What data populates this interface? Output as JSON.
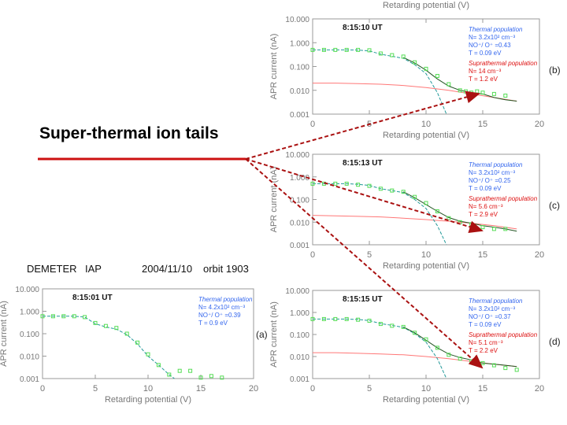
{
  "callout_text": "Super-thermal ion tails",
  "header": {
    "instrument": "DEMETER",
    "sensor": "IAP",
    "date": "2004/11/10",
    "orbit": "orbit 1903"
  },
  "colors": {
    "measured": "#55dd55",
    "thermal_fit": "#229999",
    "suprathermal_fit": "#ff7777",
    "total_fit": "#225522",
    "annotation_blue": "#3366ee",
    "annotation_red": "#dd1111",
    "callout_line": "#cc1111",
    "arrow": "#aa1111"
  },
  "chart_data": [
    {
      "id": "b",
      "type": "scatter",
      "panel_label": "(b)",
      "time": "8:15:10 UT",
      "xlabel": "Retarding potential (V)",
      "ylabel": "APR current (nA)",
      "top_axis_label": "Retarding potential (V)",
      "xlim": [
        0,
        20
      ],
      "ylim": [
        0.001,
        10
      ],
      "xticks": [
        "0",
        "5",
        "10",
        "15",
        "20"
      ],
      "yticks": [
        "0.001",
        "0.010",
        "0.100",
        "1.000",
        "10.000"
      ],
      "thermal": {
        "title": "Thermal population",
        "lines": [
          "N= 3.2x10² cm⁻³",
          "NO⁺/ O⁺ =0.43",
          "T = 0.09 eV"
        ]
      },
      "suprathermal": {
        "title": "Suprathermal population",
        "lines": [
          "N= 14 cm⁻³",
          "T = 1.2 eV"
        ]
      },
      "measured": {
        "x": [
          0,
          1,
          2,
          3,
          4,
          5,
          6,
          7,
          8,
          9,
          10,
          11,
          12,
          13,
          13.5,
          14,
          14.5,
          15,
          16,
          17
        ],
        "y": [
          0.5,
          0.5,
          0.5,
          0.5,
          0.5,
          0.48,
          0.35,
          0.3,
          0.26,
          0.15,
          0.08,
          0.04,
          0.018,
          0.01,
          0.009,
          0.008,
          0.009,
          0.008,
          0.007,
          0.006
        ]
      },
      "thermal_fit": {
        "x": [
          0,
          1,
          2,
          3,
          4,
          5,
          6,
          7,
          8,
          9,
          10,
          11,
          11.8
        ],
        "y": [
          0.5,
          0.5,
          0.5,
          0.5,
          0.49,
          0.45,
          0.33,
          0.27,
          0.22,
          0.12,
          0.05,
          0.008,
          0.001
        ]
      },
      "supra_fit": {
        "x": [
          0,
          2,
          4,
          6,
          8,
          10,
          12,
          14,
          16,
          18
        ],
        "y": [
          0.02,
          0.02,
          0.019,
          0.018,
          0.016,
          0.013,
          0.01,
          0.007,
          0.005,
          0.0035
        ]
      },
      "total_fit": {
        "x": [
          8,
          9,
          10,
          11,
          12,
          13,
          14,
          15,
          16,
          17,
          18
        ],
        "y": [
          0.24,
          0.14,
          0.07,
          0.03,
          0.015,
          0.01,
          0.008,
          0.007,
          0.005,
          0.004,
          0.0035
        ]
      }
    },
    {
      "id": "c",
      "type": "scatter",
      "panel_label": "(c)",
      "time": "8:15:13 UT",
      "xlabel": "Retarding potential (V)",
      "ylabel": "APR current (nA)",
      "xlim": [
        0,
        20
      ],
      "ylim": [
        0.001,
        10
      ],
      "xticks": [
        "0",
        "5",
        "10",
        "15",
        "20"
      ],
      "yticks": [
        "0.001",
        "0.010",
        "0.100",
        "1.000",
        "10.000"
      ],
      "thermal": {
        "title": "Thermal population",
        "lines": [
          "N= 3.2x10² cm⁻³",
          "NO⁺/ O⁺ =0.25",
          "T = 0.09 eV"
        ]
      },
      "suprathermal": {
        "title": "Suprathermal population",
        "lines": [
          "N= 5.6 cm⁻³",
          "T = 2.9 eV"
        ]
      },
      "measured": {
        "x": [
          0,
          1,
          2,
          3,
          4,
          5,
          6,
          7,
          8,
          9,
          10,
          11,
          12,
          13,
          14,
          15,
          16,
          17
        ],
        "y": [
          0.5,
          0.5,
          0.5,
          0.5,
          0.45,
          0.4,
          0.3,
          0.25,
          0.22,
          0.13,
          0.07,
          0.03,
          0.015,
          0.01,
          0.008,
          0.006,
          0.005,
          0.005
        ]
      },
      "thermal_fit": {
        "x": [
          0,
          1,
          2,
          3,
          4,
          5,
          6,
          7,
          8,
          9,
          10,
          11,
          11.8
        ],
        "y": [
          0.5,
          0.5,
          0.5,
          0.5,
          0.47,
          0.42,
          0.3,
          0.25,
          0.2,
          0.1,
          0.04,
          0.007,
          0.001
        ]
      },
      "supra_fit": {
        "x": [
          0,
          2,
          4,
          6,
          8,
          10,
          12,
          14,
          16,
          18
        ],
        "y": [
          0.02,
          0.019,
          0.018,
          0.017,
          0.015,
          0.013,
          0.011,
          0.009,
          0.007,
          0.005
        ]
      },
      "total_fit": {
        "x": [
          8,
          9,
          10,
          11,
          12,
          13,
          14,
          15,
          16,
          17,
          18
        ],
        "y": [
          0.22,
          0.12,
          0.06,
          0.03,
          0.016,
          0.011,
          0.009,
          0.007,
          0.006,
          0.005,
          0.004
        ]
      }
    },
    {
      "id": "d",
      "type": "scatter",
      "panel_label": "(d)",
      "time": "8:15:15 UT",
      "xlabel": "Retarding potential (V)",
      "ylabel": "APR current (nA)",
      "xlim": [
        0,
        20
      ],
      "ylim": [
        0.001,
        10
      ],
      "xticks": [
        "0",
        "5",
        "10",
        "15",
        "20"
      ],
      "yticks": [
        "0.001",
        "0.010",
        "0.100",
        "1.000",
        "10.000"
      ],
      "thermal": {
        "title": "Thermal population",
        "lines": [
          "N= 3.2x10² cm⁻³",
          "NO⁺/ O⁺ =0.37",
          "T = 0.09 eV"
        ]
      },
      "suprathermal": {
        "title": "Suprathermal population",
        "lines": [
          "N= 5.1 cm⁻³",
          "T = 2.2 eV"
        ]
      },
      "measured": {
        "x": [
          0,
          1,
          2,
          3,
          4,
          5,
          6,
          7,
          8,
          9,
          10,
          11,
          12,
          13,
          14,
          15,
          16,
          17,
          18
        ],
        "y": [
          0.5,
          0.5,
          0.5,
          0.5,
          0.47,
          0.42,
          0.3,
          0.25,
          0.22,
          0.12,
          0.06,
          0.025,
          0.012,
          0.008,
          0.006,
          0.005,
          0.004,
          0.003,
          0.0025
        ]
      },
      "thermal_fit": {
        "x": [
          0,
          1,
          2,
          3,
          4,
          5,
          6,
          7,
          8,
          9,
          10,
          11,
          11.8
        ],
        "y": [
          0.5,
          0.5,
          0.5,
          0.5,
          0.48,
          0.43,
          0.31,
          0.26,
          0.21,
          0.11,
          0.045,
          0.008,
          0.001
        ]
      },
      "supra_fit": {
        "x": [
          0,
          2,
          4,
          6,
          8,
          10,
          12,
          14,
          16,
          18
        ],
        "y": [
          0.015,
          0.015,
          0.014,
          0.013,
          0.012,
          0.01,
          0.008,
          0.006,
          0.0045,
          0.0035
        ]
      },
      "total_fit": {
        "x": [
          8,
          9,
          10,
          11,
          12,
          13,
          14,
          15,
          16,
          17,
          18
        ],
        "y": [
          0.22,
          0.12,
          0.055,
          0.025,
          0.013,
          0.009,
          0.007,
          0.005,
          0.0045,
          0.004,
          0.0035
        ]
      }
    },
    {
      "id": "a",
      "type": "scatter",
      "panel_label": "(a)",
      "time": "8:15:01 UT",
      "xlabel": "Retarding potential (V)",
      "ylabel": "APR current (nA)",
      "xlim": [
        0,
        20
      ],
      "ylim": [
        0.001,
        10
      ],
      "xticks": [
        "0",
        "5",
        "10",
        "15",
        "20"
      ],
      "yticks": [
        "0.001",
        "0.010",
        "0.100",
        "1.000",
        "10.000"
      ],
      "thermal": {
        "title": "Thermal population",
        "lines": [
          "N= 4.2x10² cm⁻³",
          "NO⁺/ O⁺ =0.39",
          "T = 0.9 eV"
        ]
      },
      "measured": {
        "x": [
          0,
          1,
          2,
          3,
          4,
          5,
          6,
          7,
          8,
          9,
          10,
          11,
          12,
          13,
          14,
          15,
          16,
          17
        ],
        "y": [
          0.6,
          0.6,
          0.6,
          0.6,
          0.55,
          0.3,
          0.22,
          0.18,
          0.1,
          0.04,
          0.012,
          0.004,
          0.0015,
          0.0022,
          0.0022,
          0.0011,
          0.0013,
          0.0011
        ]
      },
      "thermal_fit": {
        "x": [
          0,
          1,
          2,
          3,
          4,
          5,
          6,
          7,
          8,
          9,
          10,
          11,
          12,
          12.5
        ],
        "y": [
          0.6,
          0.6,
          0.6,
          0.6,
          0.55,
          0.28,
          0.2,
          0.16,
          0.09,
          0.035,
          0.01,
          0.004,
          0.0015,
          0.001
        ]
      }
    }
  ]
}
